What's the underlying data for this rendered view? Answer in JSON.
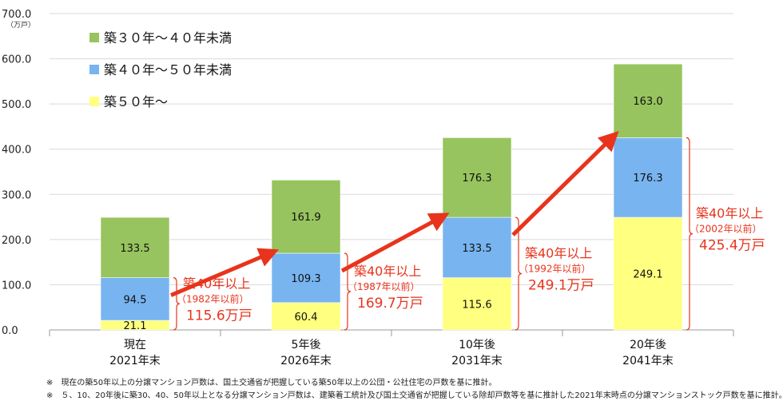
{
  "chart_data": {
    "type": "bar",
    "stacked": true,
    "unit": "（万戸）",
    "ylim": [
      0,
      700
    ],
    "yticks": [
      "0.0",
      "100.0",
      "200.0",
      "300.0",
      "400.0",
      "500.0",
      "600.0",
      "700.0"
    ],
    "grid": true,
    "legend_position": "top-left",
    "categories": [
      [
        "現在",
        "2021年末"
      ],
      [
        "5年後",
        "2026年末"
      ],
      [
        "10年後",
        "2031年末"
      ],
      [
        "20年後",
        "2041年末"
      ]
    ],
    "series": [
      {
        "name": "築５０年～",
        "color": "#ffff80",
        "values": [
          21.1,
          60.4,
          115.6,
          249.1
        ],
        "labels": [
          "21.1",
          "60.4",
          "115.6",
          "249.1"
        ]
      },
      {
        "name": "築４０年～５０年未満",
        "color": "#78b4f0",
        "values": [
          94.5,
          109.3,
          133.5,
          176.3
        ],
        "labels": [
          "94.5",
          "109.3",
          "133.5",
          "176.3"
        ]
      },
      {
        "name": "築３０年～４０年未満",
        "color": "#97c45e",
        "values": [
          133.5,
          161.9,
          176.3,
          163.0
        ],
        "labels": [
          "133.5",
          "161.9",
          "176.3",
          "163.0"
        ]
      }
    ],
    "legend_order": [
      2,
      1,
      0
    ],
    "annotations": [
      {
        "line1": "築40年以上",
        "line2": "（1982年以前）",
        "line3": "115.6万戸"
      },
      {
        "line1": "築40年以上",
        "line2": "（1987年以前）",
        "line3": "169.7万戸"
      },
      {
        "line1": "築40年以上",
        "line2": "（1992年以前）",
        "line3": "249.1万戸"
      },
      {
        "line1": "築40年以上",
        "line2": "（2002年以前）",
        "line3": "425.4万戸"
      }
    ],
    "annotation_color": "#e8341c"
  },
  "notes": [
    "※　現在の築50年以上の分譲マンション戸数は、国土交通省が把握している築50年以上の公団・公社住宅の戸数を基に推計。",
    "※　５、10、20年後に築30、40、50年以上となる分譲マンション戸数は、建築着工統計及び国土交通省が把握している除却戸数等を基に推計した2021年末時点の分譲マンションストック戸数を基に推計。"
  ]
}
